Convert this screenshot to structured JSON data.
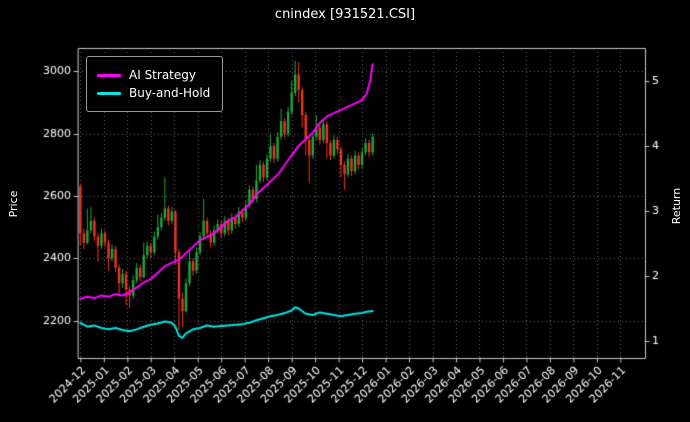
{
  "chart_data": {
    "type": "candlestick",
    "title": "cnindex [931521.CSI]",
    "ylabel_left": "Price",
    "ylabel_right": "Return",
    "background": "#000000",
    "text_color": "#ffffff",
    "grid_color": "#666666",
    "spine_color": "#c8c8c8",
    "up_color": "#1fa83c",
    "down_color": "#ee3524",
    "left_axis": {
      "label": "Price",
      "min": 2080,
      "max": 3075,
      "ticks": [
        2200,
        2400,
        2600,
        2800,
        3000
      ]
    },
    "right_axis": {
      "label": "Return",
      "min": 0.74,
      "max": 5.5,
      "ticks": [
        1,
        2,
        3,
        4,
        5
      ]
    },
    "x_axis": {
      "min": -0.1,
      "max": 24.05,
      "tick_labels": [
        "2024-12",
        "2025-01",
        "2025-02",
        "2025-03",
        "2025-04",
        "2025-05",
        "2025-06",
        "2025-07",
        "2025-08",
        "2025-09",
        "2025-10",
        "2025-11",
        "2025-12",
        "2026-01",
        "2026-02",
        "2026-03",
        "2026-04",
        "2026-05",
        "2026-06",
        "2026-07",
        "2026-08",
        "2026-09",
        "2026-10",
        "2026-11"
      ]
    },
    "legend": [
      {
        "label": "AI Strategy",
        "color": "#ff00ff"
      },
      {
        "label": "Buy-and-Hold",
        "color": "#00e5e5"
      }
    ],
    "candles_format": [
      "month_index",
      "open",
      "high",
      "low",
      "close"
    ],
    "candles": [
      [
        0.0,
        2630,
        2640,
        2440,
        2480
      ],
      [
        0.15,
        2480,
        2495,
        2430,
        2450
      ],
      [
        0.3,
        2450,
        2560,
        2445,
        2490
      ],
      [
        0.45,
        2490,
        2565,
        2480,
        2520
      ],
      [
        0.6,
        2520,
        2530,
        2455,
        2470
      ],
      [
        0.75,
        2470,
        2480,
        2390,
        2440
      ],
      [
        0.9,
        2440,
        2495,
        2430,
        2480
      ],
      [
        1.05,
        2480,
        2490,
        2435,
        2450
      ],
      [
        1.2,
        2450,
        2460,
        2360,
        2400
      ],
      [
        1.35,
        2400,
        2445,
        2390,
        2430
      ],
      [
        1.5,
        2430,
        2440,
        2355,
        2370
      ],
      [
        1.65,
        2370,
        2380,
        2280,
        2320
      ],
      [
        1.8,
        2320,
        2365,
        2305,
        2350
      ],
      [
        1.95,
        2350,
        2360,
        2250,
        2300
      ],
      [
        2.1,
        2300,
        2310,
        2240,
        2280
      ],
      [
        2.25,
        2280,
        2345,
        2270,
        2330
      ],
      [
        2.4,
        2330,
        2385,
        2320,
        2370
      ],
      [
        2.55,
        2370,
        2380,
        2325,
        2340
      ],
      [
        2.7,
        2340,
        2450,
        2335,
        2410
      ],
      [
        2.85,
        2410,
        2455,
        2400,
        2440
      ],
      [
        3.0,
        2440,
        2450,
        2400,
        2420
      ],
      [
        3.15,
        2420,
        2485,
        2410,
        2470
      ],
      [
        3.3,
        2470,
        2540,
        2460,
        2500
      ],
      [
        3.45,
        2500,
        2545,
        2490,
        2530
      ],
      [
        3.6,
        2530,
        2660,
        2520,
        2560
      ],
      [
        3.75,
        2560,
        2570,
        2505,
        2520
      ],
      [
        3.9,
        2520,
        2565,
        2510,
        2550
      ],
      [
        4.05,
        2550,
        2555,
        2380,
        2420
      ],
      [
        4.2,
        2420,
        2430,
        2170,
        2270
      ],
      [
        4.35,
        2270,
        2290,
        2180,
        2230
      ],
      [
        4.5,
        2230,
        2335,
        2225,
        2320
      ],
      [
        4.65,
        2320,
        2430,
        2310,
        2390
      ],
      [
        4.8,
        2390,
        2400,
        2345,
        2360
      ],
      [
        4.95,
        2360,
        2435,
        2350,
        2420
      ],
      [
        5.1,
        2420,
        2485,
        2410,
        2470
      ],
      [
        5.25,
        2470,
        2590,
        2460,
        2520
      ],
      [
        5.4,
        2520,
        2530,
        2465,
        2480
      ],
      [
        5.55,
        2480,
        2490,
        2435,
        2450
      ],
      [
        5.7,
        2450,
        2505,
        2440,
        2490
      ],
      [
        5.85,
        2490,
        2525,
        2480,
        2510
      ],
      [
        6.0,
        2510,
        2520,
        2465,
        2480
      ],
      [
        6.15,
        2480,
        2535,
        2470,
        2520
      ],
      [
        6.3,
        2520,
        2530,
        2475,
        2490
      ],
      [
        6.45,
        2490,
        2545,
        2480,
        2530
      ],
      [
        6.6,
        2530,
        2540,
        2495,
        2510
      ],
      [
        6.75,
        2510,
        2565,
        2500,
        2550
      ],
      [
        6.9,
        2550,
        2560,
        2515,
        2530
      ],
      [
        7.05,
        2530,
        2585,
        2520,
        2570
      ],
      [
        7.2,
        2570,
        2635,
        2560,
        2620
      ],
      [
        7.35,
        2620,
        2630,
        2575,
        2590
      ],
      [
        7.5,
        2590,
        2700,
        2580,
        2650
      ],
      [
        7.65,
        2650,
        2715,
        2640,
        2700
      ],
      [
        7.8,
        2700,
        2710,
        2645,
        2660
      ],
      [
        7.95,
        2660,
        2735,
        2650,
        2720
      ],
      [
        8.1,
        2720,
        2800,
        2710,
        2760
      ],
      [
        8.25,
        2760,
        2770,
        2705,
        2720
      ],
      [
        8.4,
        2720,
        2805,
        2710,
        2790
      ],
      [
        8.55,
        2790,
        2880,
        2780,
        2840
      ],
      [
        8.7,
        2840,
        2850,
        2785,
        2800
      ],
      [
        8.85,
        2800,
        2885,
        2790,
        2870
      ],
      [
        9.0,
        2870,
        2970,
        2860,
        2930
      ],
      [
        9.15,
        2930,
        3035,
        2920,
        2990
      ],
      [
        9.3,
        2990,
        3030,
        2900,
        2940
      ],
      [
        9.45,
        2940,
        2950,
        2820,
        2860
      ],
      [
        9.6,
        2860,
        2870,
        2730,
        2780
      ],
      [
        9.75,
        2780,
        2790,
        2640,
        2730
      ],
      [
        9.9,
        2730,
        2805,
        2720,
        2790
      ],
      [
        10.05,
        2790,
        2860,
        2780,
        2820
      ],
      [
        10.2,
        2820,
        2830,
        2765,
        2780
      ],
      [
        10.35,
        2780,
        2845,
        2770,
        2830
      ],
      [
        10.5,
        2830,
        2840,
        2720,
        2770
      ],
      [
        10.65,
        2770,
        2780,
        2715,
        2730
      ],
      [
        10.8,
        2730,
        2795,
        2720,
        2780
      ],
      [
        10.95,
        2780,
        2790,
        2735,
        2750
      ],
      [
        11.1,
        2750,
        2760,
        2660,
        2700
      ],
      [
        11.25,
        2700,
        2710,
        2620,
        2670
      ],
      [
        11.4,
        2670,
        2735,
        2660,
        2720
      ],
      [
        11.55,
        2720,
        2730,
        2665,
        2680
      ],
      [
        11.7,
        2680,
        2745,
        2670,
        2730
      ],
      [
        11.85,
        2730,
        2740,
        2685,
        2700
      ],
      [
        12.0,
        2700,
        2755,
        2690,
        2740
      ],
      [
        12.15,
        2740,
        2785,
        2730,
        2770
      ],
      [
        12.3,
        2770,
        2780,
        2725,
        2740
      ],
      [
        12.45,
        2740,
        2800,
        2730,
        2790
      ]
    ],
    "series": [
      {
        "name": "AI Strategy",
        "axis": "right",
        "color": "#ff00ff",
        "width": 2,
        "points": [
          [
            0,
            1.65
          ],
          [
            0.3,
            1.68
          ],
          [
            0.6,
            1.66
          ],
          [
            0.9,
            1.7
          ],
          [
            1.2,
            1.68
          ],
          [
            1.5,
            1.72
          ],
          [
            1.8,
            1.7
          ],
          [
            2.1,
            1.75
          ],
          [
            2.4,
            1.82
          ],
          [
            2.7,
            1.9
          ],
          [
            3.0,
            1.95
          ],
          [
            3.3,
            2.05
          ],
          [
            3.6,
            2.15
          ],
          [
            3.9,
            2.2
          ],
          [
            4.2,
            2.25
          ],
          [
            4.5,
            2.35
          ],
          [
            4.8,
            2.45
          ],
          [
            5.1,
            2.55
          ],
          [
            5.4,
            2.6
          ],
          [
            5.7,
            2.65
          ],
          [
            6.0,
            2.75
          ],
          [
            6.3,
            2.85
          ],
          [
            6.6,
            2.9
          ],
          [
            6.9,
            3.0
          ],
          [
            7.2,
            3.1
          ],
          [
            7.5,
            3.25
          ],
          [
            7.8,
            3.35
          ],
          [
            8.1,
            3.45
          ],
          [
            8.4,
            3.55
          ],
          [
            8.7,
            3.7
          ],
          [
            9.0,
            3.85
          ],
          [
            9.3,
            4.0
          ],
          [
            9.6,
            4.1
          ],
          [
            9.9,
            4.2
          ],
          [
            10.2,
            4.35
          ],
          [
            10.5,
            4.45
          ],
          [
            10.8,
            4.5
          ],
          [
            11.1,
            4.55
          ],
          [
            11.4,
            4.6
          ],
          [
            11.7,
            4.65
          ],
          [
            12.0,
            4.7
          ],
          [
            12.2,
            4.8
          ],
          [
            12.35,
            5.0
          ],
          [
            12.45,
            5.25
          ]
        ]
      },
      {
        "name": "Buy-and-Hold",
        "axis": "right",
        "color": "#00e5e5",
        "width": 2,
        "points": [
          [
            0,
            1.28
          ],
          [
            0.3,
            1.22
          ],
          [
            0.6,
            1.24
          ],
          [
            0.9,
            1.2
          ],
          [
            1.2,
            1.18
          ],
          [
            1.5,
            1.2
          ],
          [
            1.8,
            1.17
          ],
          [
            2.1,
            1.15
          ],
          [
            2.4,
            1.18
          ],
          [
            2.7,
            1.22
          ],
          [
            3.0,
            1.25
          ],
          [
            3.3,
            1.27
          ],
          [
            3.6,
            1.3
          ],
          [
            3.9,
            1.28
          ],
          [
            4.05,
            1.22
          ],
          [
            4.2,
            1.08
          ],
          [
            4.35,
            1.05
          ],
          [
            4.5,
            1.12
          ],
          [
            4.8,
            1.18
          ],
          [
            5.1,
            1.2
          ],
          [
            5.4,
            1.24
          ],
          [
            5.7,
            1.22
          ],
          [
            6.0,
            1.23
          ],
          [
            6.3,
            1.24
          ],
          [
            6.6,
            1.25
          ],
          [
            6.9,
            1.26
          ],
          [
            7.2,
            1.28
          ],
          [
            7.5,
            1.32
          ],
          [
            7.8,
            1.35
          ],
          [
            8.1,
            1.38
          ],
          [
            8.4,
            1.4
          ],
          [
            8.7,
            1.43
          ],
          [
            9.0,
            1.47
          ],
          [
            9.15,
            1.52
          ],
          [
            9.3,
            1.5
          ],
          [
            9.6,
            1.42
          ],
          [
            9.9,
            1.4
          ],
          [
            10.2,
            1.44
          ],
          [
            10.5,
            1.42
          ],
          [
            10.8,
            1.4
          ],
          [
            11.1,
            1.38
          ],
          [
            11.4,
            1.4
          ],
          [
            11.7,
            1.42
          ],
          [
            12.0,
            1.43
          ],
          [
            12.2,
            1.45
          ],
          [
            12.45,
            1.46
          ]
        ]
      }
    ]
  }
}
